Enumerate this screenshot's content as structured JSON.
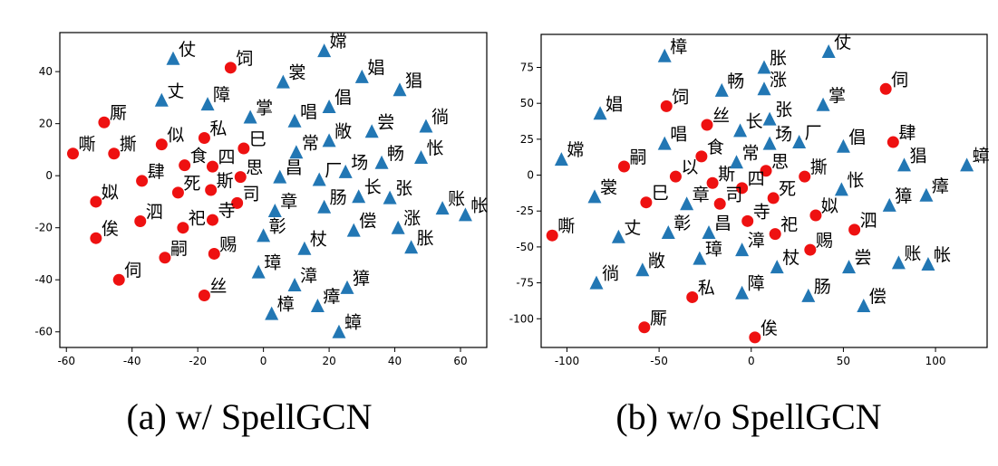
{
  "colors": {
    "red": "#ee1111",
    "blue": "#2277b4"
  },
  "chart_data": [
    {
      "type": "scatter",
      "caption": "(a) w/ SpellGCN",
      "xlim": [
        -62,
        68
      ],
      "ylim": [
        -66,
        55
      ],
      "xticks": [
        -60,
        -40,
        -20,
        0,
        20,
        40,
        60
      ],
      "yticks": [
        -60,
        -40,
        -20,
        0,
        20,
        40
      ],
      "grid": false,
      "series": [
        {
          "marker": "circle",
          "color": "#ee1111",
          "points": [
            {
              "x": -10,
              "y": 41.5,
              "label": "饲"
            },
            {
              "x": -48.5,
              "y": 20.5,
              "label": "厮"
            },
            {
              "x": -31,
              "y": 12,
              "label": "似"
            },
            {
              "x": -18,
              "y": 14.5,
              "label": "私"
            },
            {
              "x": -58,
              "y": 8.5,
              "label": "嘶"
            },
            {
              "x": -45.5,
              "y": 8.5,
              "label": "撕"
            },
            {
              "x": -24,
              "y": 4,
              "label": "食"
            },
            {
              "x": -15.5,
              "y": 3.5,
              "label": "四"
            },
            {
              "x": -6,
              "y": 10.5,
              "label": "巳"
            },
            {
              "x": -37,
              "y": -2,
              "label": "肆"
            },
            {
              "x": -26,
              "y": -6.5,
              "label": "死"
            },
            {
              "x": -16,
              "y": -5.5,
              "label": "斯"
            },
            {
              "x": -7,
              "y": -0.5,
              "label": "思"
            },
            {
              "x": -8,
              "y": -10.5,
              "label": "司"
            },
            {
              "x": -51,
              "y": -10,
              "label": "姒"
            },
            {
              "x": -37.5,
              "y": -17.5,
              "label": "泗"
            },
            {
              "x": -24.5,
              "y": -20,
              "label": "祀"
            },
            {
              "x": -15.5,
              "y": -17,
              "label": "寺"
            },
            {
              "x": -51,
              "y": -24,
              "label": "俟"
            },
            {
              "x": -30,
              "y": -31.5,
              "label": "嗣"
            },
            {
              "x": -15,
              "y": -30,
              "label": "赐"
            },
            {
              "x": -44,
              "y": -40,
              "label": "伺"
            },
            {
              "x": -18,
              "y": -46,
              "label": "丝"
            }
          ]
        },
        {
          "marker": "triangle",
          "color": "#2277b4",
          "points": [
            {
              "x": -27.5,
              "y": 45,
              "label": "仗"
            },
            {
              "x": 18.5,
              "y": 48,
              "label": "嫦"
            },
            {
              "x": 6,
              "y": 36,
              "label": "裳"
            },
            {
              "x": 30,
              "y": 38,
              "label": "娼"
            },
            {
              "x": -31,
              "y": 29,
              "label": "丈"
            },
            {
              "x": -17,
              "y": 27.5,
              "label": "障"
            },
            {
              "x": -4,
              "y": 22.5,
              "label": "掌"
            },
            {
              "x": 20,
              "y": 26.5,
              "label": "倡"
            },
            {
              "x": 41.5,
              "y": 33,
              "label": "猖"
            },
            {
              "x": 9.5,
              "y": 21,
              "label": "唱"
            },
            {
              "x": 33,
              "y": 17,
              "label": "尝"
            },
            {
              "x": 49.5,
              "y": 19,
              "label": "徜"
            },
            {
              "x": 20,
              "y": 13.5,
              "label": "敞"
            },
            {
              "x": 10,
              "y": 9,
              "label": "常"
            },
            {
              "x": 36,
              "y": 5,
              "label": "畅"
            },
            {
              "x": 48,
              "y": 7,
              "label": "怅"
            },
            {
              "x": 5,
              "y": -0.5,
              "label": "昌"
            },
            {
              "x": 25,
              "y": 1.5,
              "label": "场"
            },
            {
              "x": 17,
              "y": -1.5,
              "label": "厂"
            },
            {
              "x": 29,
              "y": -8,
              "label": "长"
            },
            {
              "x": 38.5,
              "y": -8.5,
              "label": "张"
            },
            {
              "x": 54.5,
              "y": -12.5,
              "label": "账"
            },
            {
              "x": 61.5,
              "y": -15,
              "label": "帐"
            },
            {
              "x": 3.5,
              "y": -13.5,
              "label": "章"
            },
            {
              "x": 18.5,
              "y": -12,
              "label": "肠"
            },
            {
              "x": 27.5,
              "y": -21,
              "label": "偿"
            },
            {
              "x": 41,
              "y": -20,
              "label": "涨"
            },
            {
              "x": 0,
              "y": -23,
              "label": "彰"
            },
            {
              "x": 45,
              "y": -27.5,
              "label": "胀"
            },
            {
              "x": 12.5,
              "y": -28,
              "label": "杖"
            },
            {
              "x": -1.5,
              "y": -37,
              "label": "璋"
            },
            {
              "x": 9.5,
              "y": -42,
              "label": "漳"
            },
            {
              "x": 25.5,
              "y": -43,
              "label": "獐"
            },
            {
              "x": 16.5,
              "y": -50,
              "label": "瘴"
            },
            {
              "x": 2.5,
              "y": -53,
              "label": "樟"
            },
            {
              "x": 23,
              "y": -60,
              "label": "蟑"
            }
          ]
        }
      ]
    },
    {
      "type": "scatter",
      "caption": "(b) w/o SpellGCN",
      "xlim": [
        -114,
        128
      ],
      "ylim": [
        -120,
        98
      ],
      "xticks": [
        -100,
        -50,
        0,
        50,
        100
      ],
      "yticks": [
        -100,
        -75,
        -50,
        -25,
        0,
        25,
        50,
        75
      ],
      "grid": false,
      "series": [
        {
          "marker": "circle",
          "color": "#ee1111",
          "points": [
            {
              "x": 73,
              "y": 60,
              "label": "伺"
            },
            {
              "x": -46,
              "y": 48,
              "label": "饲"
            },
            {
              "x": -24,
              "y": 35,
              "label": "丝"
            },
            {
              "x": 77,
              "y": 23,
              "label": "肆"
            },
            {
              "x": -27,
              "y": 13,
              "label": "食"
            },
            {
              "x": -69,
              "y": 6,
              "label": "嗣"
            },
            {
              "x": -41,
              "y": -1,
              "label": "以"
            },
            {
              "x": -21,
              "y": -5.5,
              "label": "斯"
            },
            {
              "x": 8,
              "y": 3,
              "label": "思"
            },
            {
              "x": 29,
              "y": -1,
              "label": "撕"
            },
            {
              "x": -5,
              "y": -9,
              "label": "四"
            },
            {
              "x": 12,
              "y": -16,
              "label": "死"
            },
            {
              "x": -57,
              "y": -19,
              "label": "巳"
            },
            {
              "x": -17,
              "y": -20,
              "label": "司"
            },
            {
              "x": -2,
              "y": -32,
              "label": "寺"
            },
            {
              "x": 35,
              "y": -28,
              "label": "姒"
            },
            {
              "x": 56,
              "y": -38,
              "label": "泗"
            },
            {
              "x": 13,
              "y": -41,
              "label": "祀"
            },
            {
              "x": -108,
              "y": -42,
              "label": "嘶"
            },
            {
              "x": 32,
              "y": -52,
              "label": "赐"
            },
            {
              "x": -32,
              "y": -85,
              "label": "私"
            },
            {
              "x": -58,
              "y": -106,
              "label": "厮"
            },
            {
              "x": 2,
              "y": -113,
              "label": "俟"
            }
          ]
        },
        {
          "marker": "triangle",
          "color": "#2277b4",
          "points": [
            {
              "x": -47,
              "y": 83,
              "label": "樟"
            },
            {
              "x": 42,
              "y": 86,
              "label": "仗"
            },
            {
              "x": 7,
              "y": 75,
              "label": "胀"
            },
            {
              "x": -16,
              "y": 59,
              "label": "畅"
            },
            {
              "x": 7,
              "y": 60,
              "label": "涨"
            },
            {
              "x": 39,
              "y": 49,
              "label": "掌"
            },
            {
              "x": -82,
              "y": 43,
              "label": "娼"
            },
            {
              "x": 10,
              "y": 39,
              "label": "张"
            },
            {
              "x": -6,
              "y": 31,
              "label": "长"
            },
            {
              "x": -47,
              "y": 22,
              "label": "唱"
            },
            {
              "x": 10,
              "y": 22,
              "label": "场"
            },
            {
              "x": 26,
              "y": 23,
              "label": "厂"
            },
            {
              "x": 50,
              "y": 20,
              "label": "倡"
            },
            {
              "x": -103,
              "y": 11,
              "label": "嫦"
            },
            {
              "x": -8,
              "y": 9,
              "label": "常"
            },
            {
              "x": 83,
              "y": 7,
              "label": "猖"
            },
            {
              "x": 117,
              "y": 7,
              "label": "蟑"
            },
            {
              "x": -85,
              "y": -15,
              "label": "裳"
            },
            {
              "x": -35,
              "y": -20,
              "label": "章"
            },
            {
              "x": 49,
              "y": -10,
              "label": "怅"
            },
            {
              "x": 75,
              "y": -21,
              "label": "獐"
            },
            {
              "x": 95,
              "y": -14,
              "label": "瘴"
            },
            {
              "x": -72,
              "y": -43,
              "label": "丈"
            },
            {
              "x": -45,
              "y": -40,
              "label": "彰"
            },
            {
              "x": -23,
              "y": -40,
              "label": "昌"
            },
            {
              "x": -28,
              "y": -58,
              "label": "璋"
            },
            {
              "x": -5,
              "y": -52,
              "label": "漳"
            },
            {
              "x": 14,
              "y": -64,
              "label": "杖"
            },
            {
              "x": 53,
              "y": -64,
              "label": "尝"
            },
            {
              "x": 80,
              "y": -61,
              "label": "账"
            },
            {
              "x": 96,
              "y": -62,
              "label": "帐"
            },
            {
              "x": -84,
              "y": -75,
              "label": "徜"
            },
            {
              "x": -59,
              "y": -66,
              "label": "敞"
            },
            {
              "x": -5,
              "y": -82,
              "label": "障"
            },
            {
              "x": 31,
              "y": -84,
              "label": "肠"
            },
            {
              "x": 61,
              "y": -91,
              "label": "偿"
            }
          ]
        }
      ]
    }
  ]
}
